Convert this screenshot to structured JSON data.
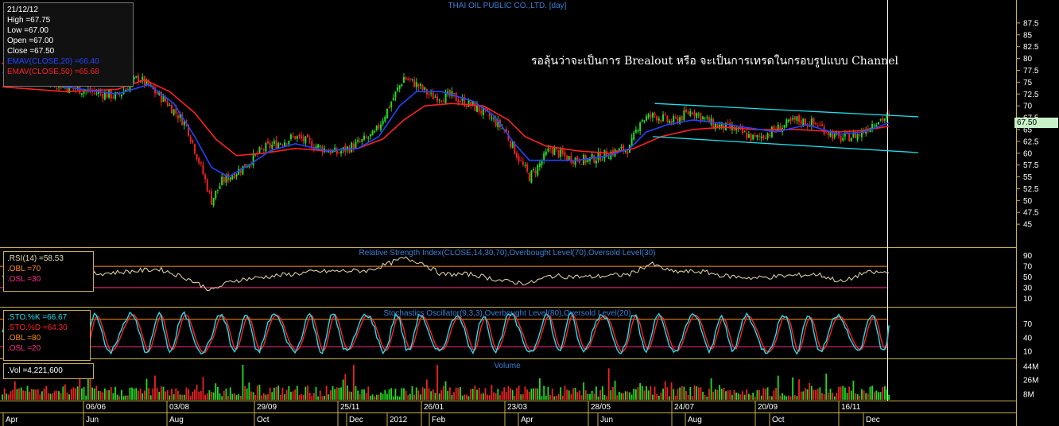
{
  "chart_data": [
    {
      "type": "candlestick",
      "title": "THAI OIL PUBLIC CO.,LTD. [day]",
      "annotation": "รอลุ้นว่าจะเป็นการ Brealout หรือ จะเป็นการเทรดในกรอบรูปแบบ Channel",
      "ylim": [
        42,
        90
      ],
      "y_ticks": [
        "87.5",
        "85",
        "82.5",
        "80",
        "77.5",
        "75",
        "72.5",
        "70",
        "67.5",
        "65",
        "62.5",
        "60",
        "57.5",
        "55",
        "52.5",
        "50",
        "47.5",
        "45"
      ],
      "last_price_tag": "67.50",
      "info": {
        "date": "21/12/12",
        "high": "High =67.75",
        "low": "Low =67.00",
        "open": "Open =67.00",
        "close": "Close =67.50",
        "ema_fast": "EMAV(CLOSE,20) =66.40",
        "ema_slow": "EMAV(CLOSE,50) =65.68"
      },
      "series": [
        {
          "name": "EMAV(CLOSE,20)",
          "color": "#2244ff"
        },
        {
          "name": "EMAV(CLOSE,50)",
          "color": "#ff2222"
        }
      ],
      "price_keypoints": [
        [
          0,
          79
        ],
        [
          30,
          74
        ],
        [
          55,
          72
        ],
        [
          65,
          76
        ],
        [
          78,
          71
        ],
        [
          88,
          66
        ],
        [
          95,
          57
        ],
        [
          100,
          50
        ],
        [
          105,
          54
        ],
        [
          115,
          57
        ],
        [
          125,
          61
        ],
        [
          140,
          63.5
        ],
        [
          150,
          61.5
        ],
        [
          160,
          60
        ],
        [
          170,
          62
        ],
        [
          178,
          64
        ],
        [
          185,
          70
        ],
        [
          192,
          76
        ],
        [
          198,
          74.5
        ],
        [
          205,
          72
        ],
        [
          215,
          72
        ],
        [
          225,
          70
        ],
        [
          232,
          68
        ],
        [
          240,
          65
        ],
        [
          248,
          58
        ],
        [
          252,
          55
        ],
        [
          256,
          57
        ],
        [
          262,
          61
        ],
        [
          270,
          59
        ],
        [
          280,
          58.5
        ],
        [
          290,
          60
        ],
        [
          300,
          61
        ],
        [
          305,
          67
        ],
        [
          312,
          68
        ],
        [
          320,
          66.5
        ],
        [
          330,
          69
        ],
        [
          340,
          66
        ],
        [
          350,
          65
        ],
        [
          360,
          63
        ],
        [
          370,
          65
        ],
        [
          380,
          67
        ],
        [
          390,
          66
        ],
        [
          400,
          63
        ],
        [
          410,
          64
        ],
        [
          418,
          67
        ],
        [
          424,
          67.5
        ]
      ],
      "ema20_keypoints": [
        [
          0,
          77
        ],
        [
          30,
          74
        ],
        [
          55,
          72.5
        ],
        [
          70,
          74.5
        ],
        [
          82,
          70.5
        ],
        [
          92,
          63.5
        ],
        [
          100,
          57
        ],
        [
          108,
          55
        ],
        [
          118,
          57.5
        ],
        [
          128,
          60.5
        ],
        [
          140,
          62
        ],
        [
          155,
          60.5
        ],
        [
          170,
          61
        ],
        [
          180,
          63.5
        ],
        [
          190,
          70
        ],
        [
          198,
          73
        ],
        [
          210,
          73
        ],
        [
          225,
          71
        ],
        [
          235,
          68
        ],
        [
          245,
          62
        ],
        [
          252,
          58.5
        ],
        [
          262,
          58.5
        ],
        [
          275,
          58.5
        ],
        [
          290,
          59.5
        ],
        [
          300,
          61
        ],
        [
          308,
          64.5
        ],
        [
          318,
          66
        ],
        [
          330,
          67
        ],
        [
          340,
          66.5
        ],
        [
          355,
          65.5
        ],
        [
          370,
          64.5
        ],
        [
          385,
          66
        ],
        [
          400,
          64
        ],
        [
          412,
          64.5
        ],
        [
          424,
          66.4
        ]
      ],
      "ema50_keypoints": [
        [
          0,
          74
        ],
        [
          30,
          73
        ],
        [
          55,
          73.5
        ],
        [
          68,
          75.5
        ],
        [
          80,
          73
        ],
        [
          92,
          68.5
        ],
        [
          102,
          63
        ],
        [
          112,
          59.5
        ],
        [
          125,
          60
        ],
        [
          140,
          61
        ],
        [
          155,
          60.5
        ],
        [
          170,
          61
        ],
        [
          182,
          63
        ],
        [
          192,
          67
        ],
        [
          202,
          70
        ],
        [
          215,
          70.5
        ],
        [
          230,
          70
        ],
        [
          242,
          67
        ],
        [
          250,
          63.5
        ],
        [
          260,
          61.5
        ],
        [
          275,
          60.5
        ],
        [
          290,
          60
        ],
        [
          302,
          61
        ],
        [
          315,
          63.5
        ],
        [
          330,
          65
        ],
        [
          345,
          65.5
        ],
        [
          360,
          65
        ],
        [
          380,
          65
        ],
        [
          400,
          64.5
        ],
        [
          412,
          64.8
        ],
        [
          424,
          65.7
        ]
      ],
      "channel_upper": [
        [
          312,
          70.5
        ],
        [
          424,
          68
        ]
      ],
      "channel_lower": [
        [
          311,
          63.5
        ],
        [
          424,
          60.5
        ]
      ],
      "x_labels_top": [
        "06/06",
        "03/08",
        "29/09",
        "25/11",
        "26/01",
        "23/03",
        "28/05",
        "24/07",
        "20/09",
        "16/11"
      ],
      "x_labels_bottom": [
        "Apr",
        "Jun",
        "Aug",
        "Oct",
        "Dec",
        "2012",
        "Feb",
        "Apr",
        "Jun",
        "Aug",
        "Oct",
        "Dec"
      ]
    },
    {
      "type": "line",
      "title": "Relative Strength Index(CLOSE,14,30,70),Overbought Level(70),Oversold Level(30)",
      "ylim": [
        0,
        100
      ],
      "y_ticks": [
        "90",
        "70",
        "50",
        "30",
        "10"
      ],
      "info": {
        "rsi": ".RSI(14) =58.53",
        "obl": ".OBL =70",
        "osl": ".OSL =30"
      },
      "levels": [
        70,
        30
      ],
      "keypoints": [
        [
          0,
          50
        ],
        [
          20,
          55
        ],
        [
          40,
          55
        ],
        [
          60,
          60
        ],
        [
          75,
          65
        ],
        [
          88,
          48
        ],
        [
          100,
          25
        ],
        [
          110,
          43
        ],
        [
          125,
          50
        ],
        [
          150,
          60
        ],
        [
          175,
          62
        ],
        [
          192,
          85
        ],
        [
          200,
          78
        ],
        [
          210,
          55
        ],
        [
          225,
          55
        ],
        [
          240,
          42
        ],
        [
          252,
          38
        ],
        [
          262,
          52
        ],
        [
          280,
          50
        ],
        [
          300,
          55
        ],
        [
          310,
          75
        ],
        [
          320,
          60
        ],
        [
          335,
          60
        ],
        [
          345,
          52
        ],
        [
          360,
          48
        ],
        [
          375,
          52
        ],
        [
          390,
          55
        ],
        [
          402,
          40
        ],
        [
          412,
          58
        ],
        [
          424,
          58.5
        ]
      ]
    },
    {
      "type": "line",
      "title": "Stochastics Oscillator(9,3,3),Overbought Level(80),Oversold Level(20)",
      "ylim": [
        0,
        100
      ],
      "y_ticks": [
        "70",
        "40",
        "10"
      ],
      "info": {
        "k": ".STO.%K =66.67",
        "d": ".STO.%D =64.30",
        "obl": ".OBL =80",
        "osl": ".OSL =20"
      },
      "levels": [
        80,
        20
      ],
      "series": [
        {
          "name": ".STO.%K",
          "color": "#22ddee"
        },
        {
          "name": ".STO.%D",
          "color": "#ff2222"
        }
      ],
      "cycle_count": 30,
      "last_k": 66.67,
      "last_d": 64.3
    },
    {
      "type": "bar",
      "title": "Volume",
      "y_ticks": [
        "44M",
        "26M",
        "8M"
      ],
      "info": {
        "vol": ".Vol =4,221,600"
      }
    }
  ]
}
